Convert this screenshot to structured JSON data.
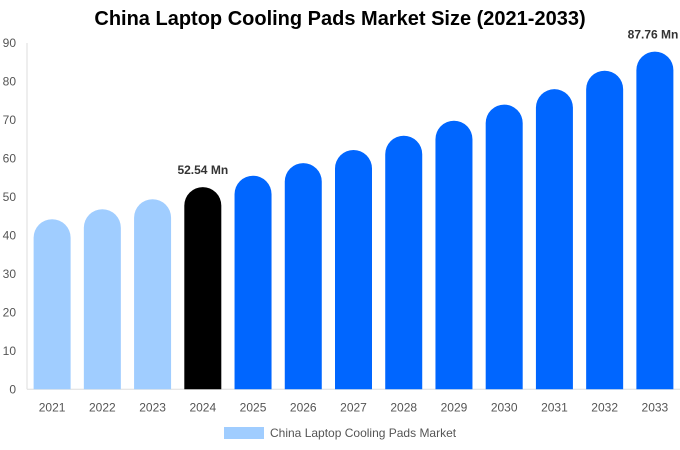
{
  "chart_data": {
    "type": "bar",
    "title": "China Laptop Cooling Pads Market Size (2021-2033)",
    "categories": [
      "2021",
      "2022",
      "2023",
      "2024",
      "2025",
      "2026",
      "2027",
      "2028",
      "2029",
      "2030",
      "2031",
      "2032",
      "2033"
    ],
    "series": [
      {
        "name": "China Laptop Cooling Pads Market",
        "values": [
          44.2,
          46.8,
          49.4,
          52.54,
          55.5,
          58.8,
          62.2,
          65.9,
          69.8,
          74.0,
          78.0,
          82.8,
          87.76
        ]
      }
    ],
    "data_labels": {
      "3": "52.54 Mn",
      "12": "87.76 Mn"
    },
    "ylim": [
      0,
      90
    ],
    "yticks": [
      0,
      10,
      20,
      30,
      40,
      50,
      60,
      70,
      80,
      90
    ],
    "grid": false,
    "legend": "bottom",
    "colors": {
      "historical": "#a0cdff",
      "base_year": "#000000",
      "forecast": "#0066ff"
    }
  }
}
